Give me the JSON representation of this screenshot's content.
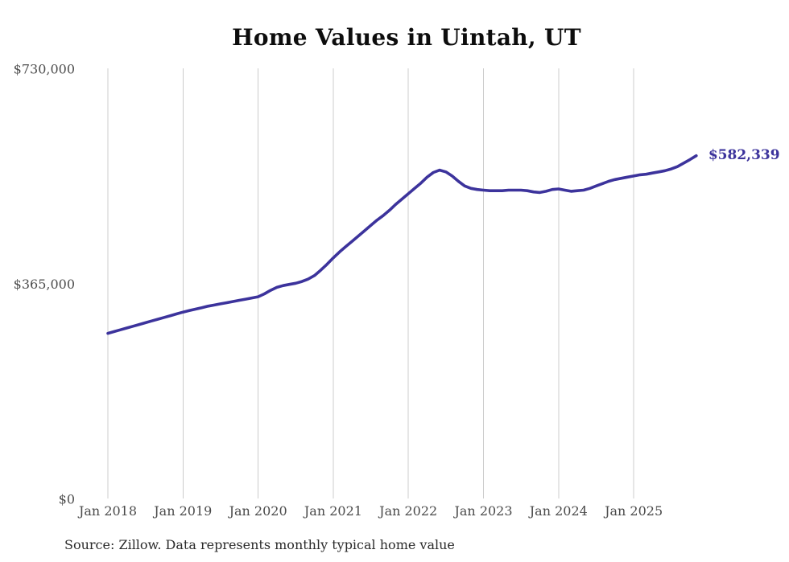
{
  "chart_data": {
    "type": "line",
    "title": "Home Values in Uintah, UT",
    "series_name": "Monthly typical home value",
    "start_month": "2018-01",
    "frequency": "monthly",
    "values": [
      281000,
      284000,
      287000,
      290000,
      293000,
      296000,
      299000,
      302000,
      305000,
      308000,
      311000,
      314000,
      317000,
      319500,
      322000,
      324500,
      327000,
      329000,
      331000,
      333000,
      335000,
      337000,
      339000,
      341000,
      343000,
      348000,
      354000,
      359000,
      362000,
      364000,
      366000,
      369000,
      373000,
      379000,
      388000,
      398000,
      409000,
      419000,
      428000,
      437000,
      446000,
      455000,
      464000,
      473000,
      481000,
      490000,
      500000,
      509000,
      518000,
      527000,
      536000,
      546000,
      554000,
      558000,
      555000,
      548000,
      539000,
      531000,
      527000,
      525000,
      524000,
      523000,
      523000,
      523000,
      524000,
      524000,
      524000,
      523000,
      521000,
      520000,
      522000,
      525000,
      526000,
      524000,
      522000,
      523000,
      524000,
      527000,
      531000,
      535000,
      539000,
      542000,
      544000,
      546000,
      548000,
      550000,
      551000,
      553000,
      555000,
      557000,
      560000,
      564000,
      570000,
      576000,
      582339
    ],
    "final_value": 582339,
    "end_label": "$582,339",
    "xlabel": "",
    "ylabel": "",
    "ylim": [
      0,
      730000
    ],
    "y_ticks": [
      {
        "label": "$0",
        "value": 0
      },
      {
        "label": "$365,000",
        "value": 365000
      },
      {
        "label": "$730,000",
        "value": 730000
      }
    ],
    "x_ticks": [
      "Jan 2018",
      "Jan 2019",
      "Jan 2020",
      "Jan 2021",
      "Jan 2022",
      "Jan 2023",
      "Jan 2024",
      "Jan 2025"
    ],
    "grid": "vertical-only",
    "legend": "none",
    "colors": {
      "line": "#3c339c",
      "end_label": "#3c339c",
      "grid": "#cccccc",
      "tick_text": "#4a4a4a",
      "title_text": "#0d0d0d"
    }
  },
  "source": {
    "text": "Source: Zillow. Data represents monthly typical home value"
  }
}
